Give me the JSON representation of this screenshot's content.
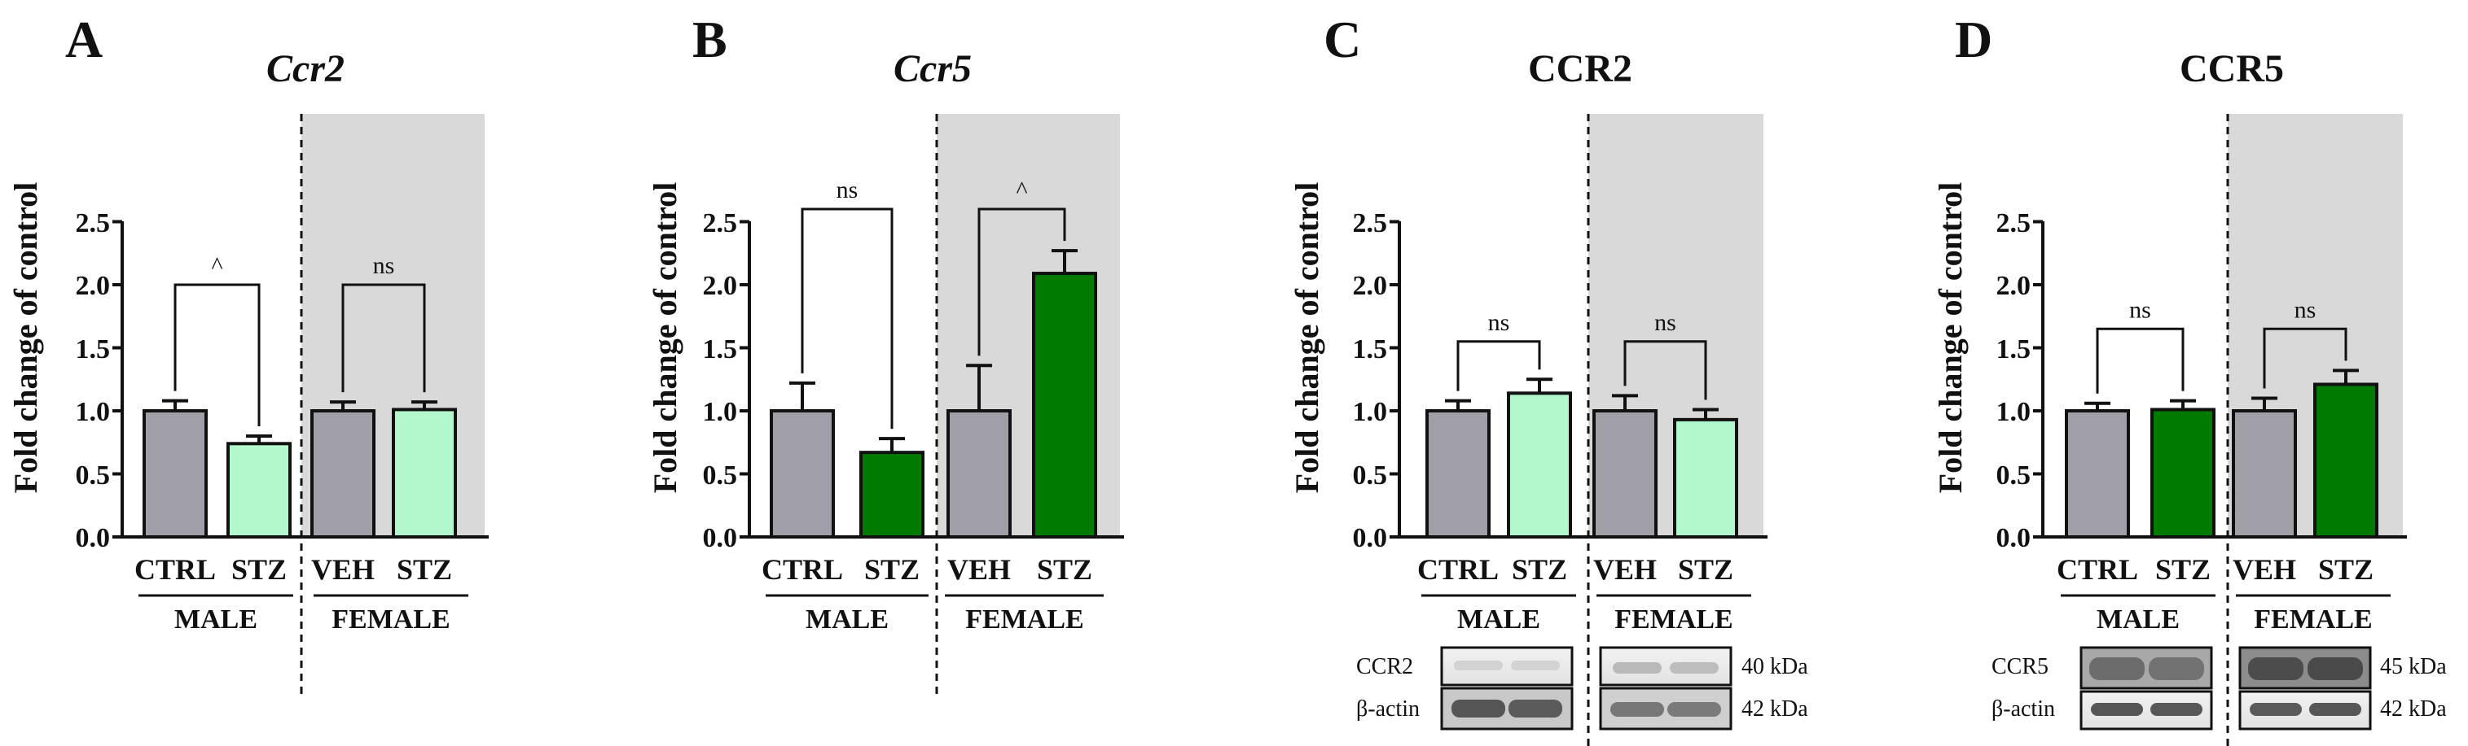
{
  "colors": {
    "ctrl": "#a09ea7",
    "light_green": "#b3f7cd",
    "dark_green": "#007a00",
    "shade": "#d9d9d9",
    "ink": "#111111"
  },
  "chart_data": [
    {
      "panel": "A",
      "title": "Ccr2",
      "title_italic": true,
      "type": "bar",
      "ylabel": "Fold change of control",
      "ylim": [
        0,
        2.5
      ],
      "yticks": [
        "0.0",
        "0.5",
        "1.0",
        "1.5",
        "2.0",
        "2.5"
      ],
      "categories": [
        "CTRL",
        "STZ",
        "VEH",
        "STZ"
      ],
      "groups": [
        "MALE",
        "FEMALE"
      ],
      "values": [
        1.0,
        0.74,
        1.0,
        1.01
      ],
      "errors": [
        0.08,
        0.06,
        0.07,
        0.06
      ],
      "bar_colors": [
        "ctrl",
        "light_green",
        "ctrl",
        "light_green"
      ],
      "female_shaded": true,
      "comparisons": [
        {
          "from": 0,
          "to": 1,
          "label": "^",
          "y": 2.0
        },
        {
          "from": 2,
          "to": 3,
          "label": "ns",
          "y": 2.0
        }
      ]
    },
    {
      "panel": "B",
      "title": "Ccr5",
      "title_italic": true,
      "type": "bar",
      "ylabel": "Fold change of control",
      "ylim": [
        0,
        2.5
      ],
      "yticks": [
        "0.0",
        "0.5",
        "1.0",
        "1.5",
        "2.0",
        "2.5"
      ],
      "categories": [
        "CTRL",
        "STZ",
        "VEH",
        "STZ"
      ],
      "groups": [
        "MALE",
        "FEMALE"
      ],
      "values": [
        1.0,
        0.67,
        1.0,
        2.09
      ],
      "errors": [
        0.22,
        0.11,
        0.36,
        0.18
      ],
      "bar_colors": [
        "ctrl",
        "dark_green",
        "ctrl",
        "dark_green"
      ],
      "female_shaded": true,
      "comparisons": [
        {
          "from": 0,
          "to": 1,
          "label": "ns",
          "y": 2.6
        },
        {
          "from": 2,
          "to": 3,
          "label": "^",
          "y": 2.6
        }
      ]
    },
    {
      "panel": "C",
      "title": "CCR2",
      "title_italic": false,
      "type": "bar",
      "ylabel": "Fold change of control",
      "ylim": [
        0,
        2.5
      ],
      "yticks": [
        "0.0",
        "0.5",
        "1.0",
        "1.5",
        "2.0",
        "2.5"
      ],
      "categories": [
        "CTRL",
        "STZ",
        "VEH",
        "STZ"
      ],
      "groups": [
        "MALE",
        "FEMALE"
      ],
      "values": [
        1.0,
        1.14,
        1.0,
        0.93
      ],
      "errors": [
        0.08,
        0.11,
        0.12,
        0.08
      ],
      "bar_colors": [
        "ctrl",
        "light_green",
        "ctrl",
        "light_green"
      ],
      "female_shaded": true,
      "comparisons": [
        {
          "from": 0,
          "to": 1,
          "label": "ns",
          "y": 1.55
        },
        {
          "from": 2,
          "to": 3,
          "label": "ns",
          "y": 1.55
        }
      ],
      "blot": {
        "rows": [
          {
            "label": "CCR2",
            "kda": "40 kDa"
          },
          {
            "label": "β-actin",
            "kda": "42 kDa"
          }
        ]
      }
    },
    {
      "panel": "D",
      "title": "CCR5",
      "title_italic": false,
      "type": "bar",
      "ylabel": "Fold change of control",
      "ylim": [
        0,
        2.5
      ],
      "yticks": [
        "0.0",
        "0.5",
        "1.0",
        "1.5",
        "2.0",
        "2.5"
      ],
      "categories": [
        "CTRL",
        "STZ",
        "VEH",
        "STZ"
      ],
      "groups": [
        "MALE",
        "FEMALE"
      ],
      "values": [
        1.0,
        1.01,
        1.0,
        1.21
      ],
      "errors": [
        0.06,
        0.07,
        0.1,
        0.11
      ],
      "bar_colors": [
        "ctrl",
        "dark_green",
        "ctrl",
        "dark_green"
      ],
      "female_shaded": true,
      "comparisons": [
        {
          "from": 0,
          "to": 1,
          "label": "ns",
          "y": 1.65
        },
        {
          "from": 2,
          "to": 3,
          "label": "ns",
          "y": 1.65
        }
      ],
      "blot": {
        "rows": [
          {
            "label": "CCR5",
            "kda": "45 kDa"
          },
          {
            "label": "β-actin",
            "kda": "42 kDa"
          }
        ]
      }
    }
  ]
}
